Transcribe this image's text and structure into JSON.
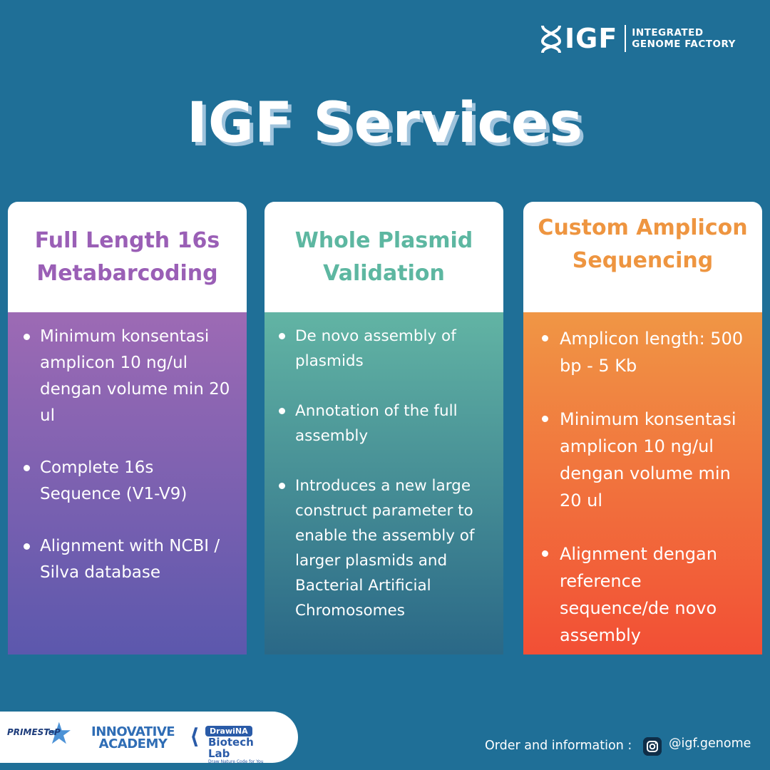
{
  "brand": {
    "logo_text": "IGF",
    "logo_sub_line1": "INTEGRATED",
    "logo_sub_line2": "GENOME FACTORY"
  },
  "title": "IGF Services",
  "cards": [
    {
      "title": "Full Length 16s Metabarcoding",
      "color": "#9a5fb6",
      "items": [
        "Minimum konsentasi amplicon  10 ng/ul dengan volume min 20 ul",
        "Complete 16s Sequence (V1-V9)",
        "Alignment with NCBI / Silva database"
      ]
    },
    {
      "title": "Whole Plasmid Validation",
      "color": "#5db7a1",
      "items": [
        "De novo assembly of plasmids",
        "Annotation of the full assembly",
        "Introduces a new large construct parameter to enable the assembly of larger plasmids and Bacterial Artificial Chromosomes"
      ]
    },
    {
      "title": "Custom Amplicon Sequencing",
      "color": "#ee9540",
      "items": [
        "Amplicon length: 500 bp - 5 Kb",
        "Minimum konsentasi amplicon  10 ng/ul dengan volume min 20 ul",
        "Alignment dengan reference sequence/de novo assembly"
      ]
    }
  ],
  "partners": {
    "p1": "PRIMESTeP",
    "p2_line1": "INNOVATIVE",
    "p2_line2": "ACADEMY",
    "p3_badge": "DrawiNA",
    "p3_line": "Biotech Lab",
    "p3_tag": "Draw Nature Code for You"
  },
  "contact": {
    "label": "Order and information :",
    "handle": "@igf.genome",
    "icon": "instagram-icon"
  }
}
